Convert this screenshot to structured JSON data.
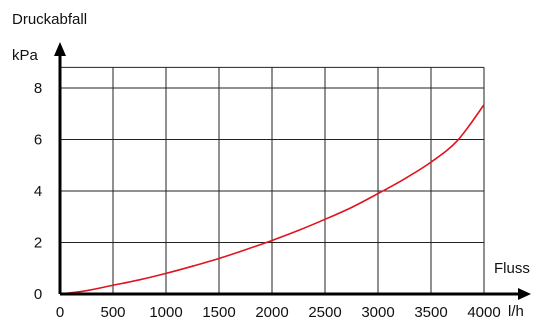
{
  "chart_data": {
    "type": "line",
    "title": "Druckabfall",
    "ylabel_unit": "kPa",
    "xlabel": "Fluss",
    "xlabel_unit": "l/h",
    "xlim": [
      0,
      4000
    ],
    "ylim": [
      0,
      8.8
    ],
    "grid": true,
    "x_ticks": [
      0,
      500,
      1000,
      1500,
      2000,
      2500,
      3000,
      3500,
      4000
    ],
    "x_tick_labels": [
      "0",
      "500",
      "1000",
      "1500",
      "2000",
      "2500",
      "3000",
      "3500",
      "4000"
    ],
    "y_ticks": [
      0,
      2,
      4,
      6,
      8
    ],
    "y_tick_labels": [
      "0",
      "2",
      "4",
      "6",
      "8"
    ],
    "series": [
      {
        "color": "#e0141e",
        "x": [
          0,
          250,
          500,
          750,
          1000,
          1250,
          1500,
          1750,
          2000,
          2250,
          2500,
          2750,
          3000,
          3250,
          3500,
          3750,
          4000
        ],
        "y": [
          0,
          0.13,
          0.34,
          0.55,
          0.8,
          1.08,
          1.38,
          1.72,
          2.08,
          2.47,
          2.9,
          3.36,
          3.9,
          4.47,
          5.12,
          5.96,
          7.35
        ]
      }
    ]
  }
}
